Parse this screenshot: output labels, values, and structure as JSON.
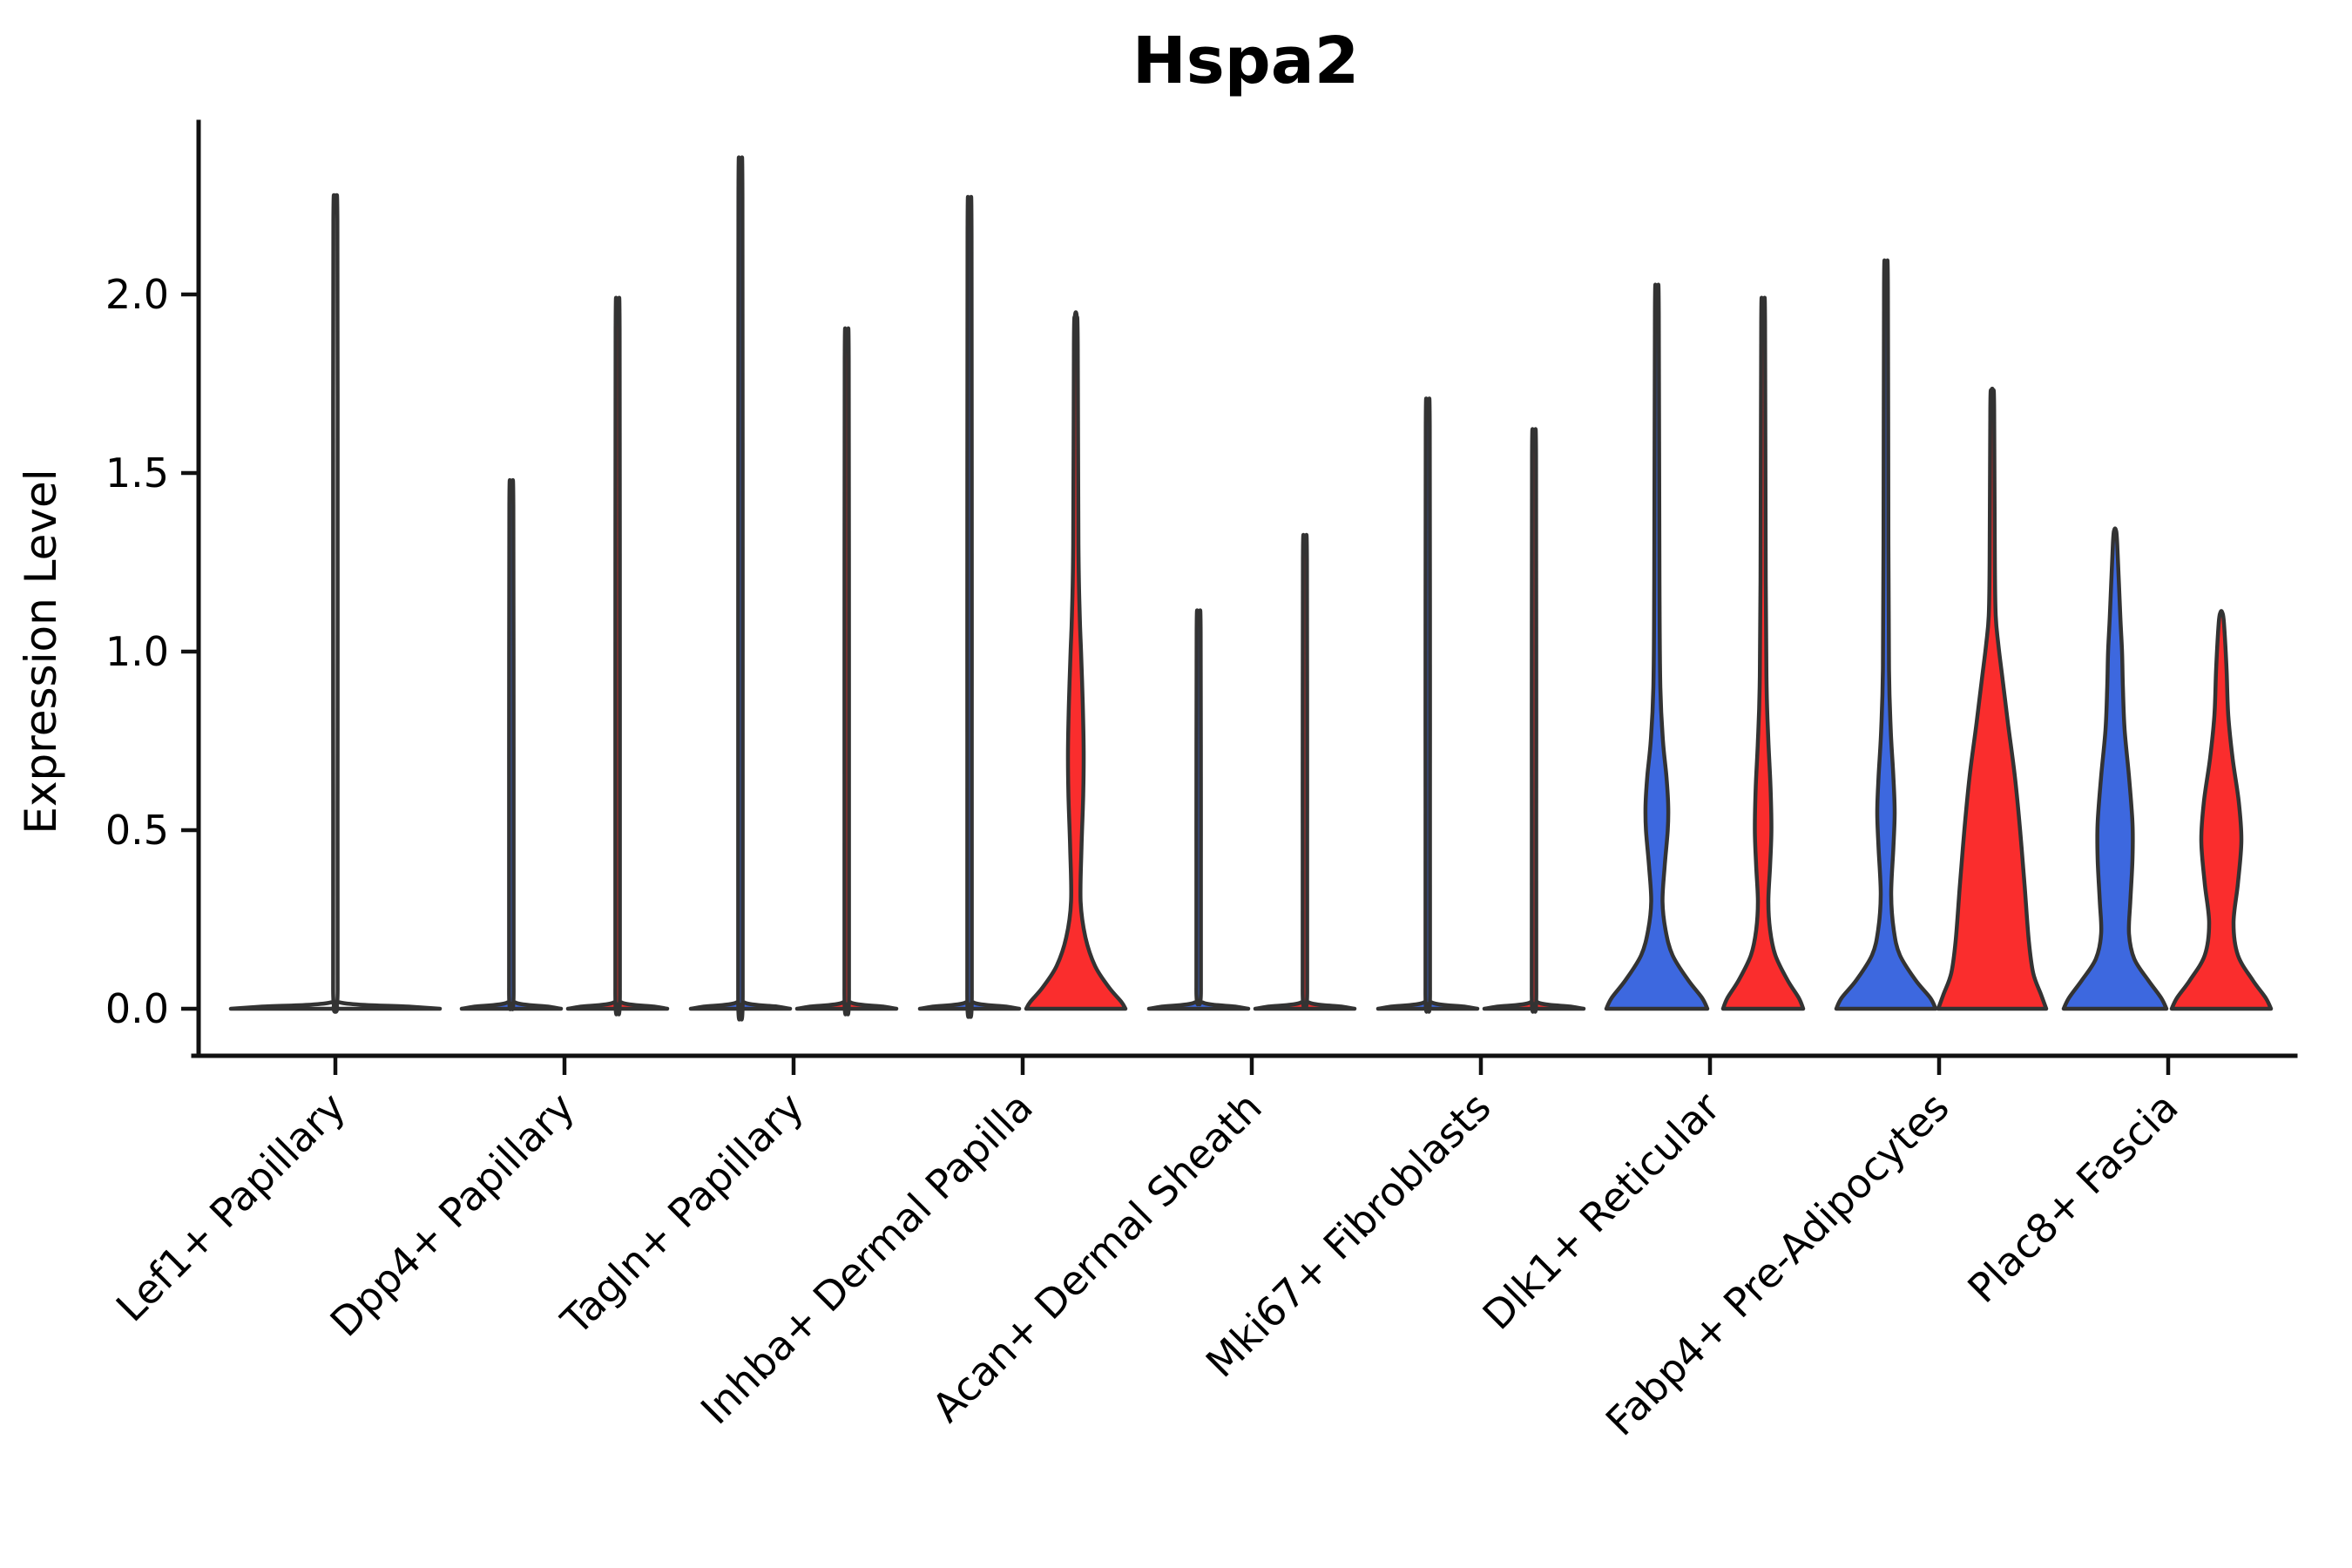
{
  "chart_data": {
    "type": "violin",
    "title": "Hspa2",
    "xlabel": "",
    "ylabel": "Expression Level",
    "ytick_labels": [
      "0.0",
      "0.5",
      "1.0",
      "1.5",
      "2.0"
    ],
    "ytick_values": [
      0.0,
      0.5,
      1.0,
      1.5,
      2.0
    ],
    "ylim": [
      0,
      2.45
    ],
    "grid": "off",
    "legend_position": "none",
    "colors": {
      "left": "#3D68DF",
      "right": "#FA2D2D",
      "single": "#FFFFFF",
      "outline": "#333333"
    },
    "categories": [
      "Lef1+ Papillary",
      "Dpp4+ Papillary",
      "Tagln+ Papillary",
      "Inhba+ Dermal Papilla",
      "Acan+ Dermal Sheath",
      "Mki67+ Fibroblasts",
      "Dlk1+ Reticular",
      "Fabp4+ Pre-Adipocytes",
      "Plac8+ Fascia"
    ],
    "violins": [
      {
        "category": "Lef1+ Papillary",
        "parts": [
          {
            "side": "single",
            "color_key": "single",
            "max_expression": 2.27,
            "profile": [
              [
                0,
                120
              ],
              [
                0.006,
                84
              ],
              [
                0.018,
                4.5
              ],
              [
                0.06,
                2.6
              ],
              [
                0.8,
                2.6
              ],
              [
                1.6,
                2.6
              ],
              [
                2.21,
                2.3
              ],
              [
                2.27,
                1.0
              ]
            ]
          }
        ]
      },
      {
        "category": "Dpp4+ Papillary",
        "parts": [
          {
            "side": "left",
            "color_key": "left",
            "max_expression": 1.46,
            "profile": [
              [
                0,
                57
              ],
              [
                0.006,
                42
              ],
              [
                0.018,
                4.2
              ],
              [
                0.06,
                2.6
              ],
              [
                0.7,
                2.6
              ],
              [
                1.41,
                2.3
              ],
              [
                1.46,
                1.0
              ]
            ]
          },
          {
            "side": "right",
            "color_key": "right",
            "max_expression": 1.95,
            "profile": [
              [
                0,
                57
              ],
              [
                0.006,
                42
              ],
              [
                0.018,
                4.2
              ],
              [
                0.06,
                2.6
              ],
              [
                0.9,
                2.6
              ],
              [
                1.9,
                2.3
              ],
              [
                1.95,
                1.0
              ]
            ]
          }
        ]
      },
      {
        "category": "Tagln+ Papillary",
        "parts": [
          {
            "side": "left",
            "color_key": "left",
            "max_expression": 2.33,
            "profile": [
              [
                0,
                57
              ],
              [
                0.006,
                42
              ],
              [
                0.018,
                4.2
              ],
              [
                0.06,
                2.6
              ],
              [
                1.1,
                2.6
              ],
              [
                2.28,
                2.3
              ],
              [
                2.33,
                1.0
              ]
            ]
          },
          {
            "side": "right",
            "color_key": "right",
            "max_expression": 1.87,
            "profile": [
              [
                0,
                57
              ],
              [
                0.006,
                42
              ],
              [
                0.018,
                4.2
              ],
              [
                0.06,
                2.6
              ],
              [
                0.9,
                2.6
              ],
              [
                1.82,
                2.3
              ],
              [
                1.87,
                1.0
              ]
            ]
          }
        ]
      },
      {
        "category": "Inhba+ Dermal Papilla",
        "parts": [
          {
            "side": "left",
            "color_key": "left",
            "max_expression": 2.22,
            "profile": [
              [
                0,
                57
              ],
              [
                0.006,
                42
              ],
              [
                0.018,
                4.2
              ],
              [
                0.06,
                2.6
              ],
              [
                1.0,
                2.6
              ],
              [
                2.17,
                2.3
              ],
              [
                2.22,
                1.0
              ]
            ]
          },
          {
            "side": "right",
            "color_key": "right",
            "max_expression": 1.94,
            "profile": [
              [
                0,
                57
              ],
              [
                0.02,
                52
              ],
              [
                0.06,
                38
              ],
              [
                0.12,
                22
              ],
              [
                0.2,
                11
              ],
              [
                0.3,
                5.5
              ],
              [
                0.45,
                6.5
              ],
              [
                0.6,
                8.5
              ],
              [
                0.72,
                9
              ],
              [
                0.85,
                8
              ],
              [
                1.0,
                6
              ],
              [
                1.1,
                4.5
              ],
              [
                1.3,
                3
              ],
              [
                1.86,
                2.2
              ],
              [
                1.94,
                1.0
              ]
            ]
          }
        ]
      },
      {
        "category": "Acan+ Dermal Sheath",
        "parts": [
          {
            "side": "left",
            "color_key": "left",
            "max_expression": 1.1,
            "profile": [
              [
                0,
                57
              ],
              [
                0.006,
                42
              ],
              [
                0.018,
                4.2
              ],
              [
                0.06,
                2.6
              ],
              [
                0.5,
                2.6
              ],
              [
                1.06,
                2.3
              ],
              [
                1.1,
                1.0
              ]
            ]
          },
          {
            "side": "right",
            "color_key": "right",
            "max_expression": 1.31,
            "profile": [
              [
                0,
                57
              ],
              [
                0.006,
                42
              ],
              [
                0.018,
                4.2
              ],
              [
                0.06,
                2.6
              ],
              [
                0.6,
                2.6
              ],
              [
                1.26,
                2.3
              ],
              [
                1.31,
                1.0
              ]
            ]
          }
        ]
      },
      {
        "category": "Mki67+ Fibroblasts",
        "parts": [
          {
            "side": "left",
            "color_key": "left",
            "max_expression": 1.68,
            "profile": [
              [
                0,
                57
              ],
              [
                0.006,
                42
              ],
              [
                0.018,
                4.2
              ],
              [
                0.06,
                2.6
              ],
              [
                0.8,
                2.6
              ],
              [
                1.63,
                2.3
              ],
              [
                1.68,
                1.0
              ]
            ]
          },
          {
            "side": "right",
            "color_key": "right",
            "max_expression": 1.6,
            "profile": [
              [
                0,
                57
              ],
              [
                0.006,
                42
              ],
              [
                0.018,
                4.2
              ],
              [
                0.06,
                2.6
              ],
              [
                0.8,
                2.6
              ],
              [
                1.55,
                2.3
              ],
              [
                1.6,
                1.0
              ]
            ]
          }
        ]
      },
      {
        "category": "Dlk1+ Reticular",
        "parts": [
          {
            "side": "left",
            "color_key": "left",
            "max_expression": 2.01,
            "profile": [
              [
                0,
                58
              ],
              [
                0.03,
                52
              ],
              [
                0.08,
                36
              ],
              [
                0.15,
                18
              ],
              [
                0.22,
                10
              ],
              [
                0.3,
                6.5
              ],
              [
                0.4,
                9
              ],
              [
                0.5,
                12.5
              ],
              [
                0.57,
                13
              ],
              [
                0.65,
                11
              ],
              [
                0.75,
                7
              ],
              [
                0.9,
                4
              ],
              [
                1.2,
                3
              ],
              [
                1.95,
                2.2
              ],
              [
                2.01,
                1.0
              ]
            ]
          },
          {
            "side": "right",
            "color_key": "right",
            "max_expression": 1.97,
            "profile": [
              [
                0,
                46
              ],
              [
                0.03,
                41
              ],
              [
                0.08,
                28
              ],
              [
                0.15,
                14
              ],
              [
                0.22,
                8
              ],
              [
                0.3,
                6
              ],
              [
                0.4,
                8
              ],
              [
                0.5,
                9.5
              ],
              [
                0.62,
                8.5
              ],
              [
                0.75,
                6
              ],
              [
                0.9,
                4
              ],
              [
                1.2,
                3
              ],
              [
                1.92,
                2.2
              ],
              [
                1.97,
                1.0
              ]
            ]
          }
        ]
      },
      {
        "category": "Fabp4+ Pre-Adipocytes",
        "parts": [
          {
            "side": "left",
            "color_key": "left",
            "max_expression": 2.08,
            "profile": [
              [
                0,
                57
              ],
              [
                0.03,
                51
              ],
              [
                0.08,
                34
              ],
              [
                0.15,
                16
              ],
              [
                0.22,
                9
              ],
              [
                0.32,
                6
              ],
              [
                0.45,
                8.5
              ],
              [
                0.55,
                10
              ],
              [
                0.65,
                8.5
              ],
              [
                0.78,
                5.5
              ],
              [
                0.95,
                3.5
              ],
              [
                1.3,
                2.8
              ],
              [
                2.02,
                2.2
              ],
              [
                2.08,
                1.0
              ]
            ]
          },
          {
            "side": "right",
            "color_key": "right",
            "max_expression": 1.73,
            "profile": [
              [
                0,
                62
              ],
              [
                0.04,
                56
              ],
              [
                0.1,
                47
              ],
              [
                0.19,
                42
              ],
              [
                0.35,
                37
              ],
              [
                0.5,
                32
              ],
              [
                0.65,
                26
              ],
              [
                0.8,
                18
              ],
              [
                0.92,
                12
              ],
              [
                1.02,
                7
              ],
              [
                1.1,
                4
              ],
              [
                1.25,
                3
              ],
              [
                1.68,
                2.2
              ],
              [
                1.73,
                1.0
              ]
            ]
          }
        ]
      },
      {
        "category": "Plac8+ Fascia",
        "parts": [
          {
            "side": "left",
            "color_key": "left",
            "max_expression": 1.34,
            "profile": [
              [
                0,
                59
              ],
              [
                0.03,
                53
              ],
              [
                0.08,
                38
              ],
              [
                0.14,
                22
              ],
              [
                0.21,
                16
              ],
              [
                0.3,
                17.5
              ],
              [
                0.42,
                20
              ],
              [
                0.52,
                20
              ],
              [
                0.65,
                16
              ],
              [
                0.78,
                11
              ],
              [
                0.9,
                9
              ],
              [
                1.0,
                8
              ],
              [
                1.1,
                6
              ],
              [
                1.3,
                2.5
              ],
              [
                1.34,
                1.0
              ]
            ]
          },
          {
            "side": "right",
            "color_key": "right",
            "max_expression": 1.11,
            "profile": [
              [
                0,
                57
              ],
              [
                0.03,
                51
              ],
              [
                0.08,
                36
              ],
              [
                0.15,
                19
              ],
              [
                0.24,
                14
              ],
              [
                0.35,
                19
              ],
              [
                0.47,
                23
              ],
              [
                0.58,
                20
              ],
              [
                0.7,
                13
              ],
              [
                0.82,
                8
              ],
              [
                0.95,
                6
              ],
              [
                1.08,
                3
              ],
              [
                1.11,
                1.0
              ]
            ]
          }
        ]
      }
    ]
  }
}
